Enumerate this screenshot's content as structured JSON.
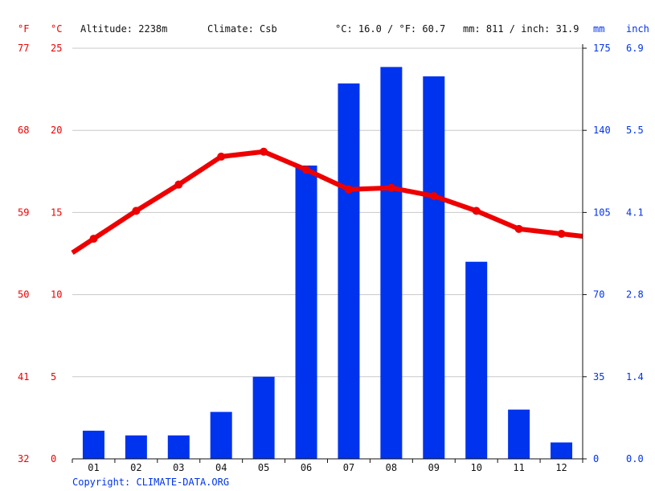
{
  "header": {
    "temp_unit_f": "°F",
    "temp_unit_c": "°C",
    "altitude": "Altitude: 2238m",
    "climate": "Climate: Csb",
    "temp_summary": "°C: 16.0 / °F: 60.7",
    "precip_summary": "mm: 811 / inch: 31.9",
    "precip_unit_mm": "mm",
    "precip_unit_inch": "inch"
  },
  "footer": {
    "copyright": "Copyright: CLIMATE-DATA.ORG"
  },
  "colors": {
    "temperature": "#ee0000",
    "precipitation": "#0033ee",
    "grid": "#c8c8c8",
    "axis": "#111111"
  },
  "chart_data": {
    "type": "bar",
    "categories": [
      "01",
      "02",
      "03",
      "04",
      "05",
      "06",
      "07",
      "08",
      "09",
      "10",
      "11",
      "12"
    ],
    "series": [
      {
        "type": "bar",
        "unit": "mm",
        "axis": "right",
        "values": [
          12,
          10,
          10,
          20,
          35,
          125,
          160,
          167,
          163,
          84,
          21,
          7
        ]
      },
      {
        "type": "line",
        "unit": "°C",
        "axis": "left",
        "values": [
          13.4,
          15.1,
          16.7,
          18.4,
          18.7,
          17.6,
          16.4,
          16.5,
          16.0,
          15.1,
          14.0,
          13.7
        ]
      }
    ],
    "left_axis_c": {
      "ticks": [
        "0",
        "5",
        "10",
        "15",
        "20",
        "25"
      ],
      "ylim": [
        0,
        25
      ]
    },
    "left_axis_f": {
      "ticks": [
        "32",
        "41",
        "50",
        "59",
        "68",
        "77"
      ]
    },
    "right_axis_mm": {
      "ticks": [
        "0",
        "35",
        "70",
        "105",
        "140",
        "175"
      ],
      "ylim": [
        0,
        175
      ]
    },
    "right_axis_inch": {
      "ticks": [
        "0.0",
        "1.4",
        "2.8",
        "4.1",
        "5.5",
        "6.9"
      ]
    },
    "grid": true
  }
}
